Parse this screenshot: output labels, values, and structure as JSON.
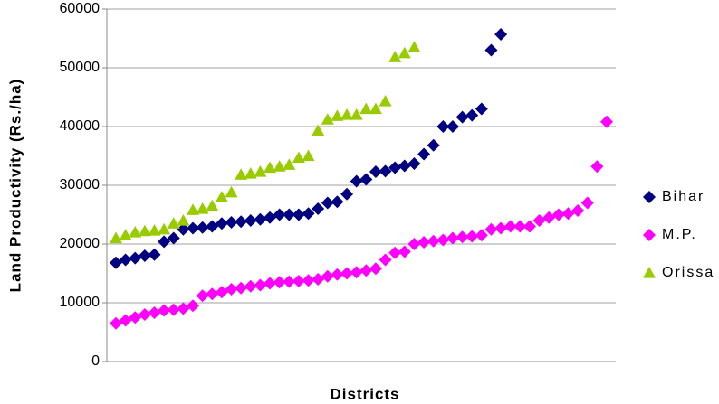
{
  "chart_data": {
    "type": "scatter",
    "xlabel": "Districts",
    "ylabel": "Land Productivity (Rs./ha)",
    "categories": [
      null,
      null,
      null,
      null,
      null,
      null,
      null,
      null,
      null,
      null,
      null,
      null,
      null,
      null,
      null,
      null,
      null,
      null,
      null,
      null,
      null,
      null,
      null,
      null,
      null,
      null,
      null,
      null,
      null,
      null,
      null,
      null,
      null,
      null,
      null,
      null,
      null,
      null,
      null,
      null,
      null,
      null,
      null,
      null,
      null,
      null,
      null,
      null,
      null,
      null,
      null,
      null
    ],
    "ylim": [
      0,
      60000
    ],
    "yticks": [
      0,
      10000,
      20000,
      30000,
      40000,
      50000,
      60000
    ],
    "grid": true,
    "legend": "right",
    "series": [
      {
        "name": "Bihar",
        "color": "#000080",
        "marker": "diamond",
        "values": [
          16800,
          17300,
          17600,
          18000,
          18200,
          20400,
          21000,
          22500,
          22700,
          22800,
          23000,
          23500,
          23700,
          23800,
          24000,
          24200,
          24500,
          25000,
          25000,
          25000,
          25200,
          26000,
          27000,
          27200,
          28500,
          30700,
          31000,
          32300,
          32400,
          33000,
          33300,
          33700,
          35300,
          36800,
          40000,
          40000,
          41600,
          41900,
          43000,
          53000,
          55700
        ]
      },
      {
        "name": "M.P.",
        "color": "#ff00ff",
        "marker": "diamond",
        "values": [
          6500,
          7000,
          7500,
          8000,
          8300,
          8700,
          8800,
          9000,
          9500,
          11200,
          11500,
          11800,
          12300,
          12500,
          12800,
          13000,
          13300,
          13500,
          13600,
          13700,
          13800,
          14000,
          14500,
          14800,
          15000,
          15200,
          15500,
          15800,
          17300,
          18500,
          18700,
          20000,
          20300,
          20500,
          20700,
          21000,
          21200,
          21300,
          21500,
          22500,
          22700,
          23000,
          23000,
          23000,
          24000,
          24500,
          25000,
          25200,
          25700,
          27000,
          33200,
          40800
        ]
      },
      {
        "name": "Orissa",
        "color": "#99cc00",
        "marker": "triangle",
        "values": [
          21000,
          21500,
          22000,
          22200,
          22300,
          22500,
          23500,
          24000,
          25800,
          26000,
          26500,
          28000,
          28800,
          31800,
          32000,
          32300,
          33000,
          33200,
          33500,
          34700,
          35000,
          39300,
          41200,
          41800,
          42000,
          42000,
          43000,
          43000,
          44300,
          51800,
          52500,
          53500
        ]
      }
    ]
  }
}
